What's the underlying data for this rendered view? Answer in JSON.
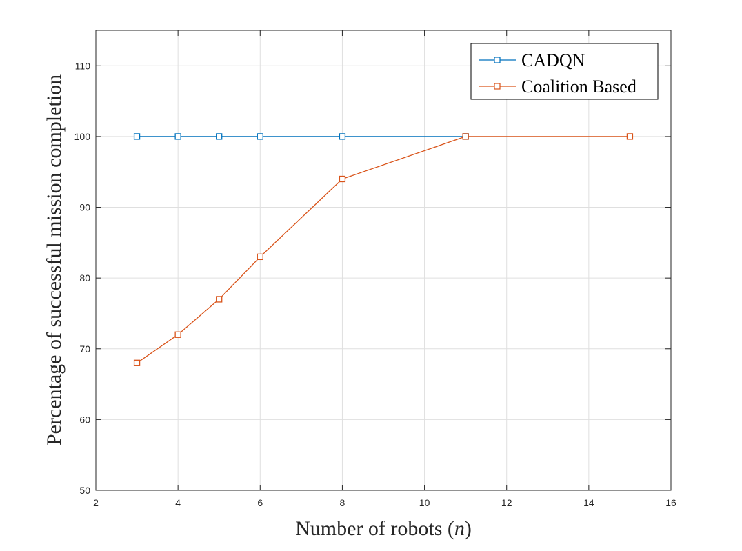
{
  "chart_data": {
    "type": "line",
    "xlabel_main": "Number of robots (",
    "xlabel_var": "n",
    "xlabel_end": ")",
    "ylabel": "Percentage of successful mission completion",
    "xlim": [
      2,
      16
    ],
    "ylim": [
      50,
      115
    ],
    "xticks": [
      "2",
      "4",
      "6",
      "8",
      "10",
      "12",
      "14",
      "16"
    ],
    "yticks": [
      "50",
      "60",
      "70",
      "80",
      "90",
      "100",
      "110"
    ],
    "grid": true,
    "legend_position": "top-right",
    "series": [
      {
        "name": "CADQN",
        "color": "#0072BD",
        "marker": "square",
        "x": [
          3,
          4,
          5,
          6,
          8,
          11
        ],
        "y": [
          100,
          100,
          100,
          100,
          100,
          100
        ]
      },
      {
        "name": "Coalition Based",
        "color": "#D95319",
        "marker": "square",
        "x": [
          3,
          4,
          5,
          6,
          8,
          11,
          15
        ],
        "y": [
          68,
          72,
          77,
          83,
          94,
          100,
          100
        ]
      }
    ]
  }
}
